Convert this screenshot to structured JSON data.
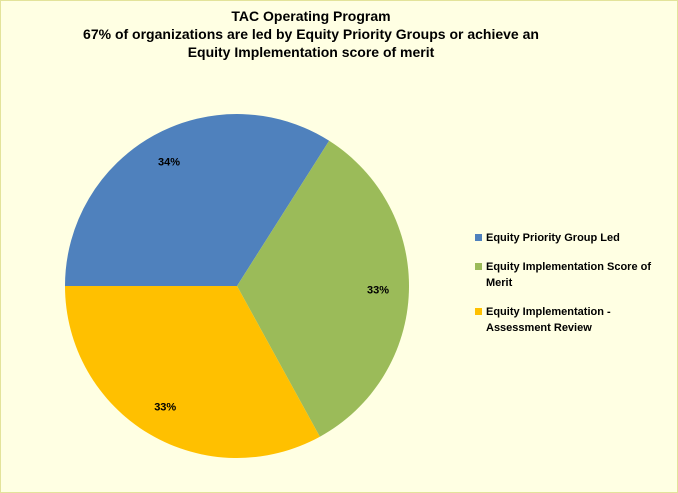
{
  "chart_data": {
    "type": "pie",
    "title": "TAC Operating Program",
    "subtitle": "67% of organizations are led by Equity Priority Groups or achieve an Equity Implementation score of merit",
    "categories": [
      "Equity Priority Group Led",
      "Equity Implementation Score of Merit",
      "Equity Implementation - Assessment Review"
    ],
    "values": [
      34,
      33,
      33
    ],
    "value_labels": [
      "34%",
      "33%",
      "33%"
    ],
    "colors": [
      "#4f81bd",
      "#9bbb59",
      "#ffc000"
    ],
    "legend": "right"
  }
}
